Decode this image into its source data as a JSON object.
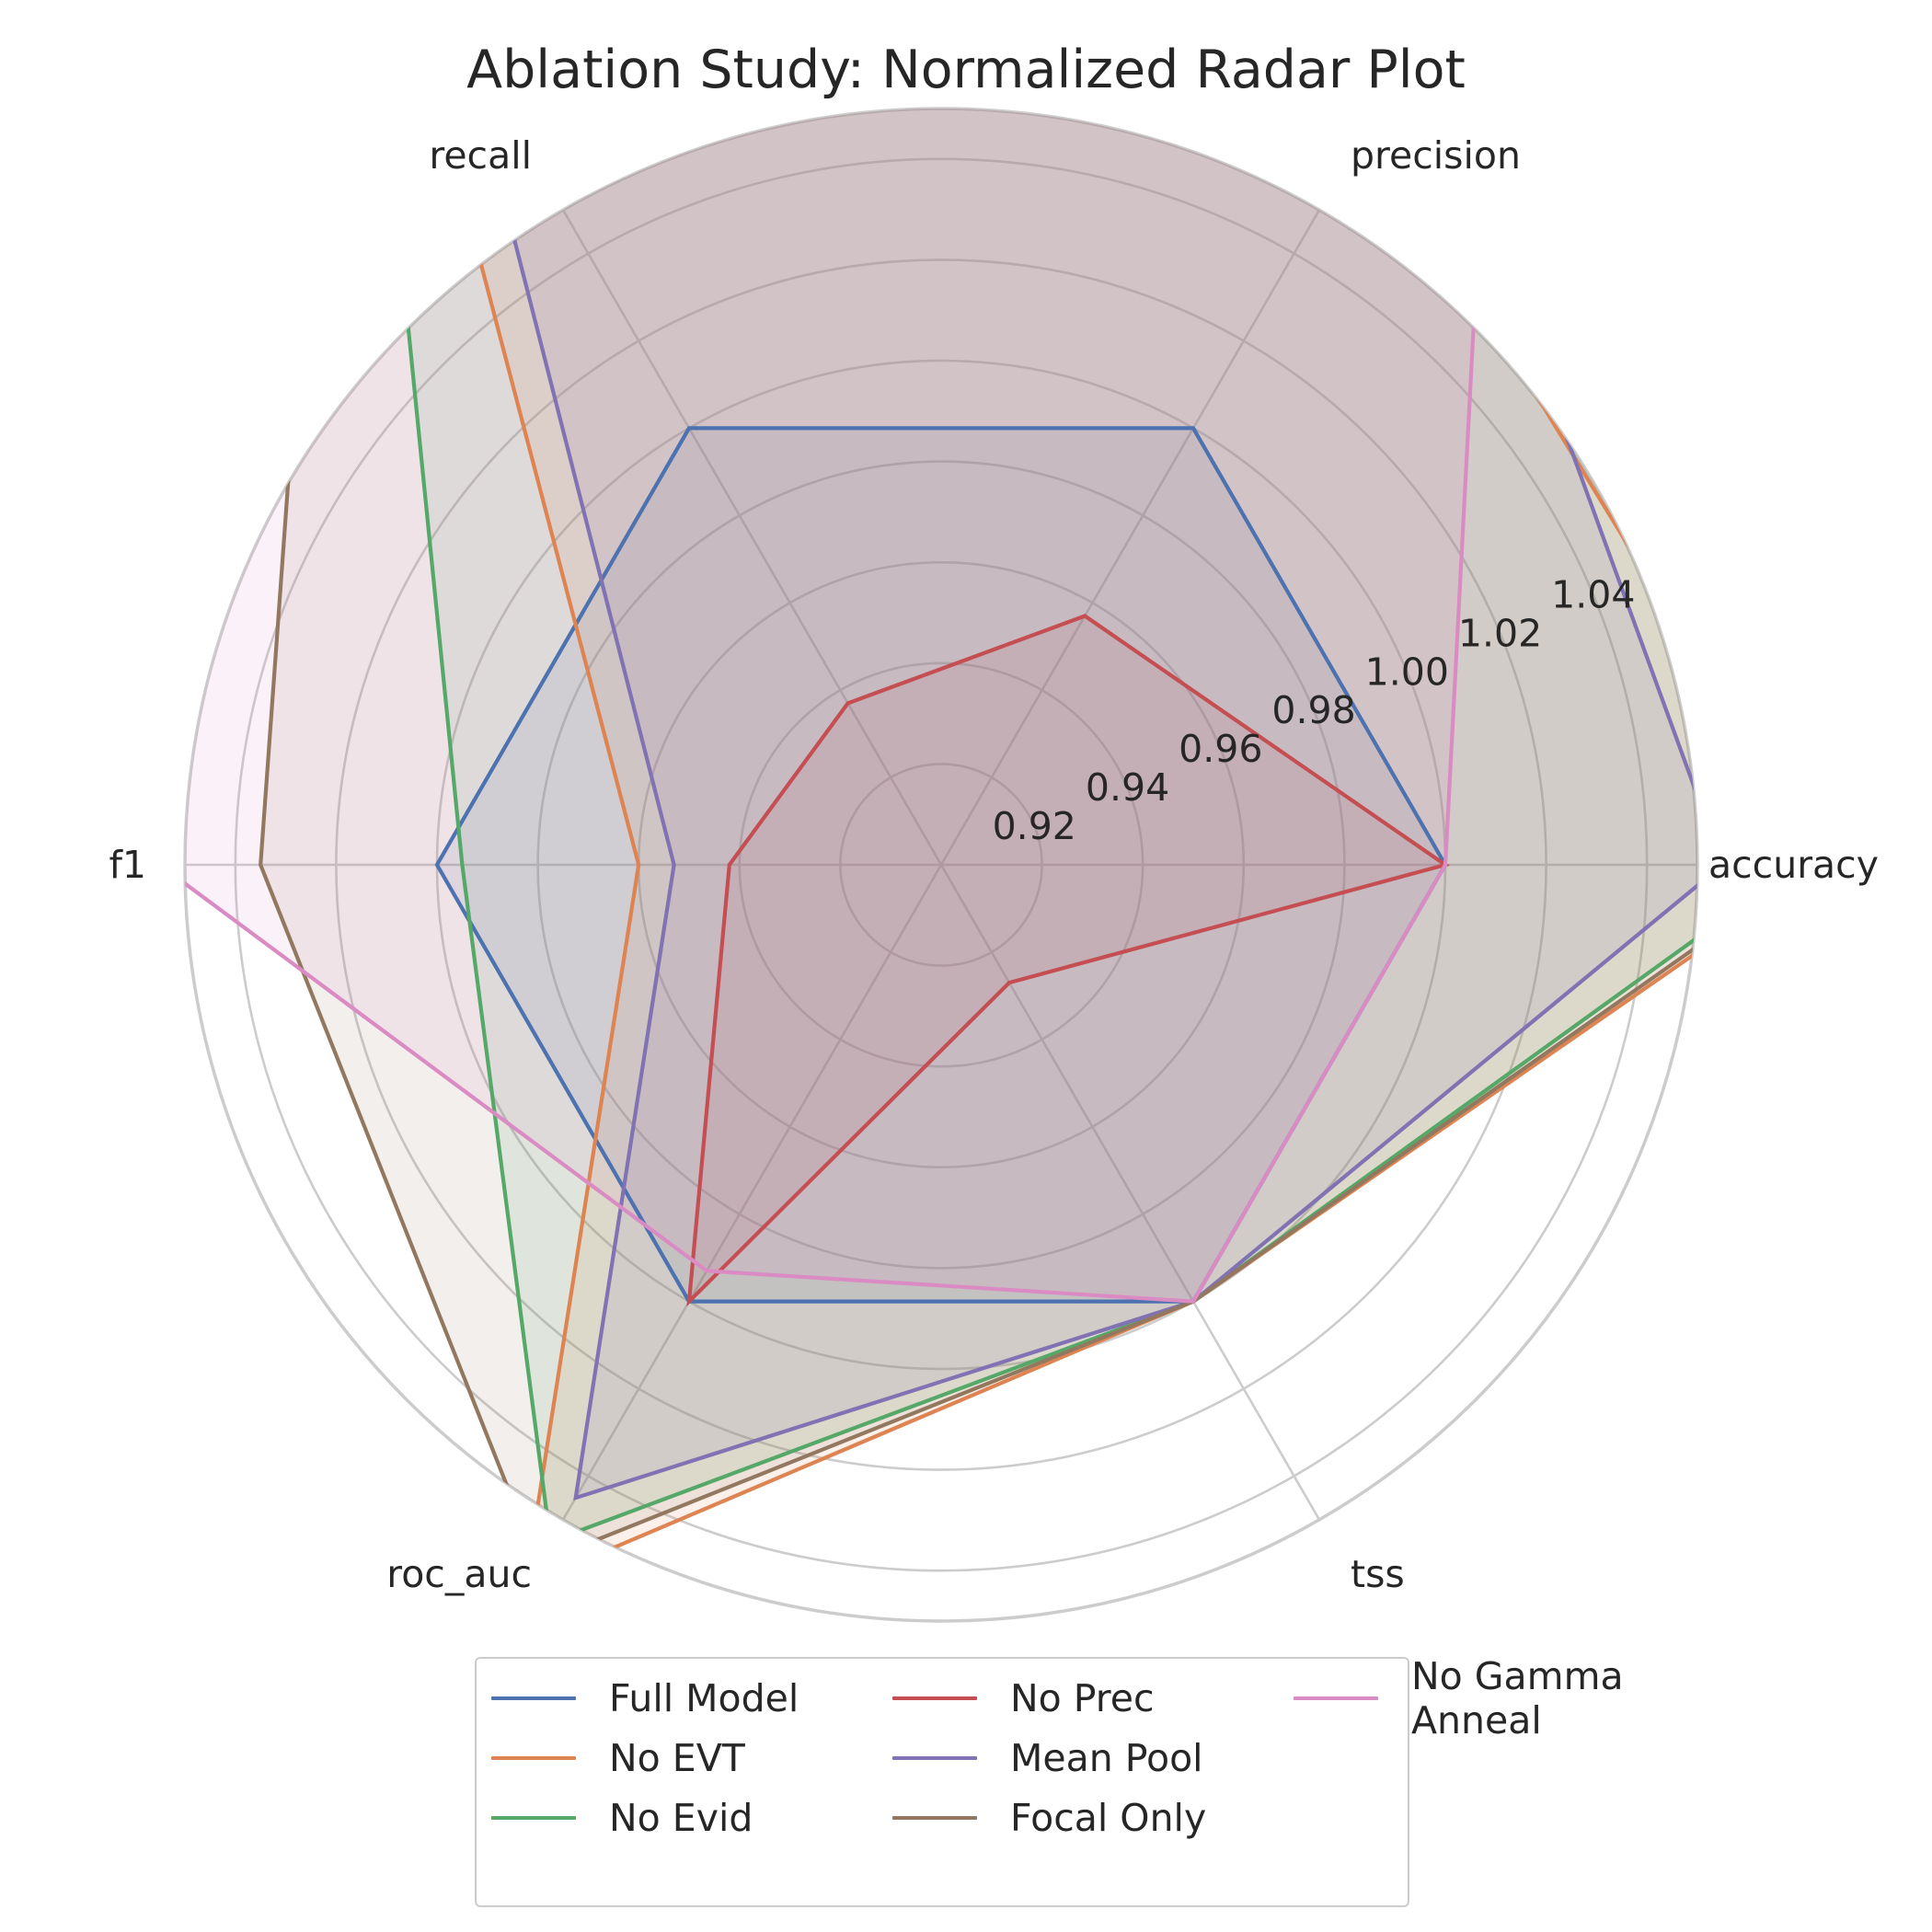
{
  "chart_data": {
    "type": "radar",
    "title": "Ablation Study: Normalized Radar Plot",
    "axes": [
      "accuracy",
      "precision",
      "recall",
      "f1",
      "roc_auc",
      "tss"
    ],
    "r_ticks": [
      "0.92",
      "0.94",
      "0.96",
      "0.98",
      "1.00",
      "1.02",
      "1.04"
    ],
    "r_tick_values": [
      0.92,
      0.94,
      0.96,
      0.98,
      1.0,
      1.02,
      1.04
    ],
    "rlim": [
      0.9,
      1.05
    ],
    "grid": true,
    "legend_position": "bottom-center",
    "series": [
      {
        "name": "Full Model",
        "color": "#4c72b0",
        "values": [
          1.0,
          1.0,
          1.0,
          1.0,
          1.0,
          1.0
        ]
      },
      {
        "name": "No EVT",
        "color": "#dd8452",
        "values": [
          1.075,
          1.07,
          1.12,
          0.96,
          1.065,
          1.0
        ]
      },
      {
        "name": "No Evid",
        "color": "#55a868",
        "values": [
          1.07,
          1.08,
          1.13,
          0.995,
          1.055,
          1.0
        ]
      },
      {
        "name": "No Prec",
        "color": "#c44e52",
        "values": [
          1.0,
          0.957,
          0.937,
          0.942,
          1.0,
          0.927
        ]
      },
      {
        "name": "Mean Pool",
        "color": "#8172b3",
        "values": [
          1.055,
          1.09,
          1.09,
          0.953,
          1.045,
          1.0
        ]
      },
      {
        "name": "Focal Only",
        "color": "#937860",
        "values": [
          1.073,
          1.1,
          1.14,
          1.035,
          1.06,
          1.0
        ]
      },
      {
        "name": "No Gamma Anneal",
        "color": "#da8bc3",
        "values": [
          1.0,
          1.12,
          1.15,
          1.055,
          0.993,
          1.0
        ]
      }
    ]
  }
}
